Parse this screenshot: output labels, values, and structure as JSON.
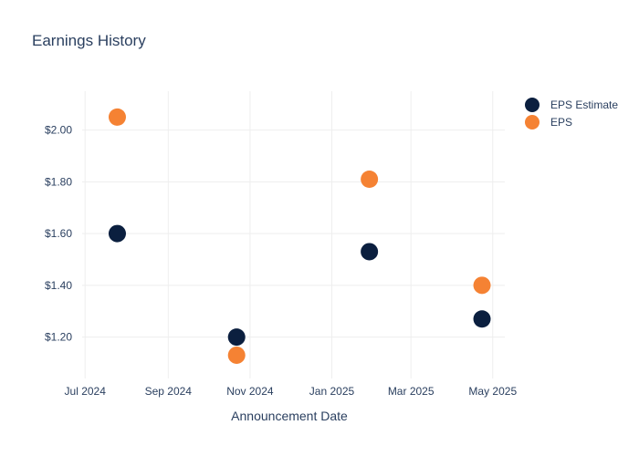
{
  "chart_data": {
    "type": "scatter",
    "title": "Earnings History",
    "xlabel": "Announcement Date",
    "ylabel": "",
    "x_ticks": [
      {
        "date": "2024-07-01",
        "label": "Jul 2024"
      },
      {
        "date": "2024-09-01",
        "label": "Sep 2024"
      },
      {
        "date": "2024-11-01",
        "label": "Nov 2024"
      },
      {
        "date": "2025-01-01",
        "label": "Jan 2025"
      },
      {
        "date": "2025-03-01",
        "label": "Mar 2025"
      },
      {
        "date": "2025-05-01",
        "label": "May 2025"
      }
    ],
    "y_ticks": [
      {
        "value": 1.2,
        "label": "$1.20"
      },
      {
        "value": 1.4,
        "label": "$1.40"
      },
      {
        "value": 1.6,
        "label": "$1.60"
      },
      {
        "value": 1.8,
        "label": "$1.80"
      },
      {
        "value": 2.0,
        "label": "$2.00"
      }
    ],
    "xlim": [
      "2024-06-22",
      "2025-05-10"
    ],
    "ylim": [
      1.04,
      2.15
    ],
    "grid": true,
    "legend_position": "top-right",
    "series": [
      {
        "name": "EPS Estimate",
        "color": "#0b1f3f",
        "points": [
          {
            "x": "2024-07-25",
            "y": 1.6
          },
          {
            "x": "2024-10-22",
            "y": 1.2
          },
          {
            "x": "2025-01-29",
            "y": 1.53
          },
          {
            "x": "2025-04-23",
            "y": 1.27
          }
        ]
      },
      {
        "name": "EPS",
        "color": "#f58233",
        "points": [
          {
            "x": "2024-07-25",
            "y": 2.05
          },
          {
            "x": "2024-10-22",
            "y": 1.13
          },
          {
            "x": "2025-01-29",
            "y": 1.81
          },
          {
            "x": "2025-04-23",
            "y": 1.4
          }
        ]
      }
    ]
  }
}
